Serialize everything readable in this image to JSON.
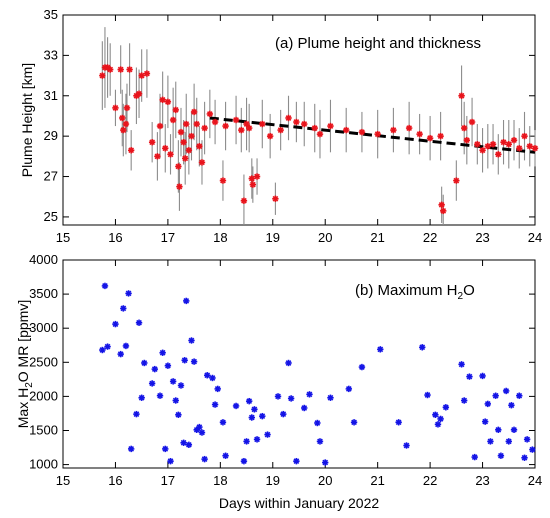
{
  "chart_data": [
    {
      "type": "scatter",
      "panel_label": "(a) Plume height and thickness",
      "ylabel": "Plume Height [km]",
      "xlabel": "",
      "xlim": [
        15,
        24
      ],
      "ylim": [
        24.6,
        35
      ],
      "xticks": [
        15,
        16,
        17,
        18,
        19,
        20,
        21,
        22,
        23,
        24
      ],
      "yticks": [
        25,
        27,
        29,
        31,
        33,
        35
      ],
      "colors": {
        "marker": "#e8141c",
        "errorbar": "#8c8c8c",
        "trend": "#000000"
      },
      "series": [
        {
          "values": [
            [
              15.75,
              32.0,
              1.7
            ],
            [
              15.8,
              32.4,
              2.0
            ],
            [
              15.85,
              32.4,
              1.5
            ],
            [
              15.9,
              32.3,
              1.3
            ],
            [
              16.0,
              30.4,
              0.9
            ],
            [
              16.1,
              32.3,
              1.2
            ],
            [
              16.13,
              29.9,
              1.4
            ],
            [
              16.15,
              29.3,
              1.3
            ],
            [
              16.2,
              29.6,
              1.5
            ],
            [
              16.22,
              30.4,
              1.2
            ],
            [
              16.27,
              32.3,
              1.3
            ],
            [
              16.3,
              28.3,
              1.0
            ],
            [
              16.4,
              31.0,
              1.4
            ],
            [
              16.45,
              31.1,
              1.2
            ],
            [
              16.5,
              32.0,
              1.3
            ],
            [
              16.6,
              32.1,
              1.2
            ],
            [
              16.7,
              28.7,
              1.0
            ],
            [
              16.8,
              28.0,
              1.2
            ],
            [
              16.85,
              29.5,
              1.6
            ],
            [
              16.9,
              30.8,
              1.4
            ],
            [
              16.95,
              28.4,
              1.2
            ],
            [
              17.0,
              30.7,
              1.3
            ],
            [
              17.05,
              28.1,
              1.0
            ],
            [
              17.1,
              29.8,
              1.6
            ],
            [
              17.15,
              30.3,
              1.4
            ],
            [
              17.2,
              27.5,
              1.3
            ],
            [
              17.22,
              26.5,
              1.2
            ],
            [
              17.25,
              29.2,
              1.2
            ],
            [
              17.3,
              28.7,
              1.1
            ],
            [
              17.33,
              27.9,
              1.3
            ],
            [
              17.35,
              29.6,
              1.5
            ],
            [
              17.4,
              28.3,
              1.2
            ],
            [
              17.45,
              29.0,
              1.2
            ],
            [
              17.5,
              30.2,
              1.4
            ],
            [
              17.55,
              29.6,
              1.3
            ],
            [
              17.6,
              28.5,
              1.0
            ],
            [
              17.65,
              27.7,
              1.1
            ],
            [
              17.7,
              29.4,
              1.3
            ],
            [
              17.8,
              30.1,
              1.2
            ],
            [
              17.9,
              29.7,
              1.1
            ],
            [
              18.05,
              26.8,
              1.0
            ],
            [
              18.1,
              29.5,
              1.2
            ],
            [
              18.3,
              29.8,
              1.2
            ],
            [
              18.4,
              29.3,
              1.1
            ],
            [
              18.45,
              25.8,
              1.3
            ],
            [
              18.5,
              29.6,
              1.3
            ],
            [
              18.55,
              29.4,
              1.2
            ],
            [
              18.6,
              26.9,
              1.0
            ],
            [
              18.62,
              26.6,
              0.9
            ],
            [
              18.7,
              27.0,
              0.9
            ],
            [
              18.8,
              29.6,
              1.2
            ],
            [
              18.95,
              29.0,
              1.1
            ],
            [
              19.05,
              25.9,
              0.8
            ],
            [
              19.15,
              29.3,
              1.0
            ],
            [
              19.3,
              29.9,
              1.1
            ],
            [
              19.45,
              29.7,
              1.0
            ],
            [
              19.6,
              29.6,
              1.1
            ],
            [
              19.8,
              29.4,
              1.2
            ],
            [
              19.9,
              29.1,
              1.2
            ],
            [
              20.1,
              29.5,
              1.3
            ],
            [
              20.4,
              29.3,
              1.1
            ],
            [
              20.7,
              29.2,
              1.0
            ],
            [
              21.0,
              29.1,
              1.2
            ],
            [
              21.3,
              29.3,
              1.1
            ],
            [
              21.6,
              29.4,
              1.3
            ],
            [
              21.8,
              29.1,
              1.0
            ],
            [
              22.0,
              28.9,
              1.1
            ],
            [
              22.2,
              29.0,
              1.2
            ],
            [
              22.22,
              25.6,
              0.9
            ],
            [
              22.25,
              25.3,
              0.8
            ],
            [
              22.5,
              26.8,
              1.0
            ],
            [
              22.6,
              31.0,
              1.5
            ],
            [
              22.65,
              29.4,
              1.3
            ],
            [
              22.7,
              28.8,
              1.2
            ],
            [
              22.8,
              29.7,
              1.2
            ],
            [
              22.9,
              28.6,
              1.0
            ],
            [
              23.0,
              28.3,
              1.1
            ],
            [
              23.1,
              28.5,
              1.1
            ],
            [
              23.2,
              28.6,
              1.0
            ],
            [
              23.3,
              28.1,
              1.0
            ],
            [
              23.4,
              28.7,
              1.1
            ],
            [
              23.5,
              28.6,
              1.2
            ],
            [
              23.6,
              28.8,
              1.0
            ],
            [
              23.7,
              28.4,
              1.0
            ],
            [
              23.8,
              29.0,
              1.2
            ],
            [
              23.9,
              28.5,
              1.0
            ],
            [
              24.0,
              28.4,
              0.9
            ]
          ]
        }
      ],
      "trend": {
        "x": [
          17.8,
          24.0
        ],
        "y": [
          29.9,
          28.2
        ]
      }
    },
    {
      "type": "scatter",
      "panel_label_main": "(b) Maximum H",
      "panel_label_sub": "2",
      "panel_label_tail": "O",
      "ylabel_main": "Max H",
      "ylabel_sub": "2",
      "ylabel_tail": "O MR [ppmv]",
      "xlabel": "Days within January 2022",
      "xlim": [
        15,
        24
      ],
      "ylim": [
        950,
        4000
      ],
      "xticks": [
        15,
        16,
        17,
        18,
        19,
        20,
        21,
        22,
        23,
        24
      ],
      "yticks": [
        1000,
        1500,
        2000,
        2500,
        3000,
        3500,
        4000
      ],
      "colors": {
        "marker": "#1414e6"
      },
      "series": [
        {
          "values": [
            [
              15.75,
              2680
            ],
            [
              15.8,
              3620
            ],
            [
              15.85,
              2730
            ],
            [
              16.0,
              3060
            ],
            [
              16.1,
              2620
            ],
            [
              16.15,
              3290
            ],
            [
              16.2,
              2740
            ],
            [
              16.25,
              3510
            ],
            [
              16.3,
              1230
            ],
            [
              16.4,
              1740
            ],
            [
              16.45,
              3080
            ],
            [
              16.5,
              1980
            ],
            [
              16.55,
              2490
            ],
            [
              16.7,
              2190
            ],
            [
              16.75,
              2400
            ],
            [
              16.85,
              2010
            ],
            [
              16.9,
              2640
            ],
            [
              16.95,
              1230
            ],
            [
              17.0,
              2450
            ],
            [
              17.05,
              1050
            ],
            [
              17.1,
              2220
            ],
            [
              17.15,
              1940
            ],
            [
              17.2,
              1730
            ],
            [
              17.25,
              2160
            ],
            [
              17.3,
              1320
            ],
            [
              17.32,
              2530
            ],
            [
              17.35,
              3400
            ],
            [
              17.4,
              1290
            ],
            [
              17.45,
              2820
            ],
            [
              17.5,
              2510
            ],
            [
              17.55,
              1510
            ],
            [
              17.6,
              1550
            ],
            [
              17.65,
              1470
            ],
            [
              17.7,
              1080
            ],
            [
              17.75,
              2310
            ],
            [
              17.85,
              2270
            ],
            [
              17.9,
              1880
            ],
            [
              17.95,
              2110
            ],
            [
              18.05,
              1620
            ],
            [
              18.1,
              1130
            ],
            [
              18.3,
              1860
            ],
            [
              18.45,
              1050
            ],
            [
              18.5,
              1340
            ],
            [
              18.55,
              1930
            ],
            [
              18.6,
              1690
            ],
            [
              18.65,
              1810
            ],
            [
              18.7,
              1370
            ],
            [
              18.8,
              1710
            ],
            [
              18.9,
              1440
            ],
            [
              19.1,
              2000
            ],
            [
              19.2,
              1740
            ],
            [
              19.3,
              2490
            ],
            [
              19.35,
              1970
            ],
            [
              19.45,
              1050
            ],
            [
              19.6,
              1830
            ],
            [
              19.7,
              2030
            ],
            [
              19.85,
              1610
            ],
            [
              19.9,
              1340
            ],
            [
              20.0,
              1030
            ],
            [
              20.1,
              1980
            ],
            [
              20.45,
              2110
            ],
            [
              20.55,
              1620
            ],
            [
              20.7,
              2430
            ],
            [
              21.05,
              2690
            ],
            [
              21.4,
              1620
            ],
            [
              21.55,
              1280
            ],
            [
              21.85,
              2720
            ],
            [
              21.95,
              2020
            ],
            [
              22.1,
              1730
            ],
            [
              22.15,
              1590
            ],
            [
              22.2,
              1670
            ],
            [
              22.3,
              1840
            ],
            [
              22.6,
              2470
            ],
            [
              22.65,
              1940
            ],
            [
              22.75,
              2290
            ],
            [
              22.85,
              1110
            ],
            [
              23.0,
              2300
            ],
            [
              23.05,
              1630
            ],
            [
              23.1,
              1890
            ],
            [
              23.15,
              1340
            ],
            [
              23.25,
              2010
            ],
            [
              23.3,
              1510
            ],
            [
              23.35,
              1130
            ],
            [
              23.45,
              2080
            ],
            [
              23.5,
              1340
            ],
            [
              23.55,
              1870
            ],
            [
              23.6,
              1510
            ],
            [
              23.7,
              2010
            ],
            [
              23.8,
              1100
            ],
            [
              23.85,
              1370
            ],
            [
              23.95,
              1220
            ]
          ]
        }
      ]
    }
  ]
}
